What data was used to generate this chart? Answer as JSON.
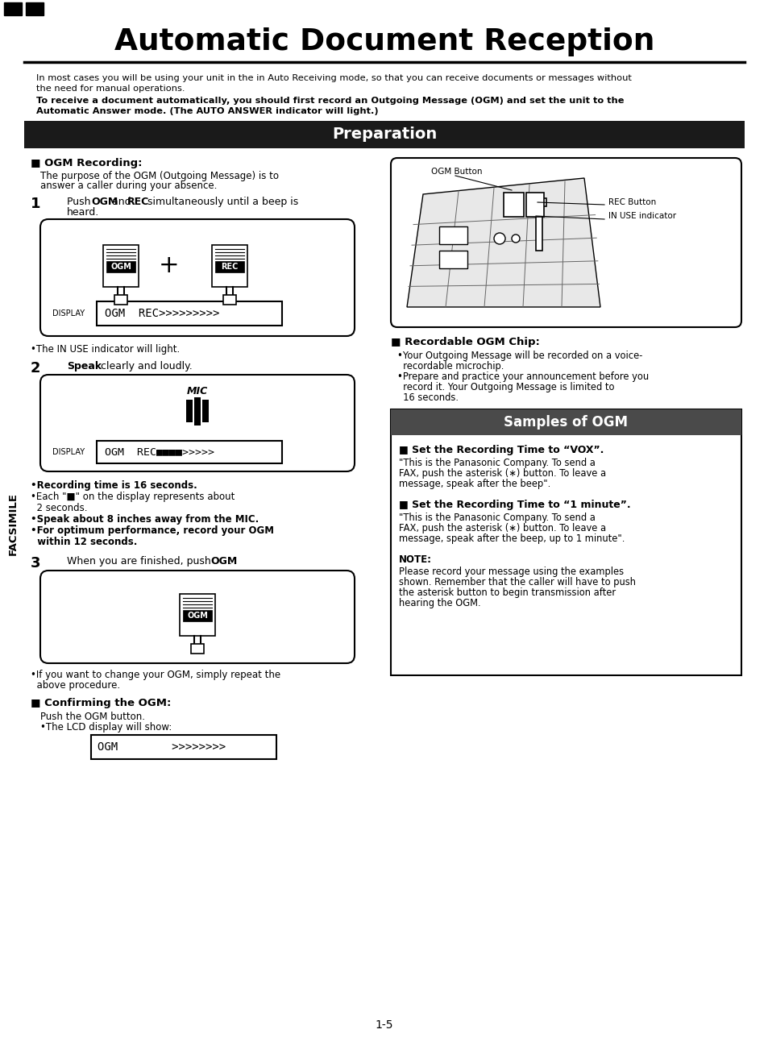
{
  "title": "Automatic Document Reception",
  "page_bg": "#ffffff",
  "title_color": "#000000",
  "prep_banner_bg": "#1a1a1a",
  "prep_banner_text": "Preparation",
  "prep_banner_text_color": "#ffffff",
  "samples_banner_bg": "#4a4a4a",
  "samples_banner_text": "Samples of OGM",
  "samples_banner_text_color": "#ffffff",
  "facsimile_text": "FACSIMILE",
  "intro_text1": "In most cases you will be using your unit in the in Auto Receiving mode, so that you can receive documents or messages without",
  "intro_text2": "the need for manual operations.",
  "intro_bold1": "To receive a document automatically, you should first record an Outgoing Message (OGM) and set the unit to the",
  "intro_bold2": "Automatic Answer mode. (The AUTO ANSWER indicator will light.)",
  "ogm_recording_title": "■ OGM Recording:",
  "ogm_recording_desc1": "The purpose of the OGM (Outgoing Message) is to",
  "ogm_recording_desc2": "answer a caller during your absence.",
  "display1_text": "OGM  REC>>>>>>>>>",
  "step1_bullet": "•The IN USE indicator will light.",
  "display2_text": "OGM  REC■■■■>>>>>",
  "rec_bullets": [
    "•Recording time is 16 seconds.",
    "•Each \"■\" on the display represents about",
    "  2 seconds.",
    "•Speak about 8 inches away from the MIC.",
    "•For optimum performance, record your OGM",
    "  within 12 seconds."
  ],
  "confirming_title": "■ Confirming the OGM:",
  "confirming_desc": "Push the OGM button.",
  "confirming_bullet": "•The LCD display will show:",
  "display3_text": "OGM        >>>>>>>>",
  "page_number": "1-5",
  "recordable_title": "■ Recordable OGM Chip:",
  "recordable_bullets": [
    "•Your Outgoing Message will be recorded on a voice-",
    "  recordable microchip.",
    "•Prepare and practice your announcement before you",
    "  record it. Your Outgoing Message is limited to",
    "  16 seconds."
  ],
  "vox_title": "■ Set the Recording Time to “VOX”.",
  "vox_text1": "\"This is the Panasonic Company. To send a",
  "vox_text2": "FAX, push the asterisk (∗) button. To leave a",
  "vox_text3": "message, speak after the beep\".",
  "one_min_title": "■ Set the Recording Time to “1 minute”.",
  "one_min_text1": "\"This is the Panasonic Company. To send a",
  "one_min_text2": "FAX, push the asterisk (∗) button. To leave a",
  "one_min_text3": "message, speak after the beep, up to 1 minute\".",
  "note_title": "NOTE:",
  "note_text1": "Please record your message using the examples",
  "note_text2": "shown. Remember that the caller will have to push",
  "note_text3": "the asterisk button to begin transmission after",
  "note_text4": "hearing the OGM."
}
